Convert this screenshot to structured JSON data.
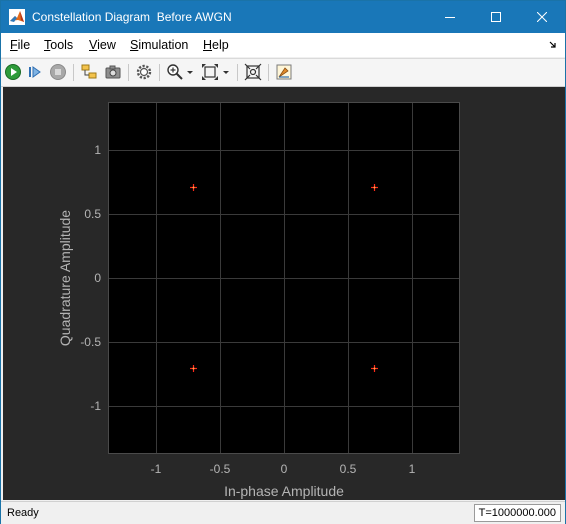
{
  "window": {
    "title": "Constellation Diagram  Before AWGN",
    "controls": [
      "minimize-icon",
      "maximize-icon",
      "close-icon"
    ]
  },
  "menu": {
    "items": [
      {
        "label": "File",
        "mnemonic": "F",
        "rest": "ile"
      },
      {
        "label": "Tools",
        "mnemonic": "T",
        "rest": "ools"
      },
      {
        "label": "View",
        "mnemonic": "V",
        "rest": "iew"
      },
      {
        "label": "Simulation",
        "mnemonic": "S",
        "rest": "imulation"
      },
      {
        "label": "Help",
        "mnemonic": "H",
        "rest": "elp"
      }
    ]
  },
  "toolbar": {
    "icons": [
      "run-icon",
      "step-forward-icon",
      "stop-icon",
      "highlight-block-icon",
      "snapshot-icon",
      "settings-icon",
      "zoom-in-icon",
      "zoom-dropdown-icon",
      "scale-axes-icon",
      "scale-dropdown-icon",
      "measurements-icon",
      "style-icon"
    ]
  },
  "colors": {
    "titlebar": "#1977b8",
    "plot_background": "#000000",
    "figure_background": "#282828",
    "grid": "#3a3a3a",
    "tick_text": "#b4b4b4",
    "marker": "#ff2a1a"
  },
  "chart_data": {
    "type": "scatter",
    "xlabel": "In-phase Amplitude",
    "ylabel": "Quadrature Amplitude",
    "xlim": [
      -1.375,
      1.375
    ],
    "ylim": [
      -1.375,
      1.375
    ],
    "xticks": [
      -1,
      -0.5,
      0,
      0.5,
      1
    ],
    "yticks": [
      -1,
      -0.5,
      0,
      0.5,
      1
    ],
    "xtick_labels": [
      "-1",
      "-0.5",
      "0",
      "0.5",
      "1"
    ],
    "ytick_labels": [
      "-1",
      "-0.5",
      "0",
      "0.5",
      "1"
    ],
    "grid": true,
    "points": [
      {
        "x": -0.707,
        "y": 0.707
      },
      {
        "x": 0.707,
        "y": 0.707
      },
      {
        "x": -0.707,
        "y": -0.707
      },
      {
        "x": 0.707,
        "y": -0.707
      }
    ]
  },
  "status": {
    "text": "Ready",
    "time": "T=1000000.000"
  }
}
